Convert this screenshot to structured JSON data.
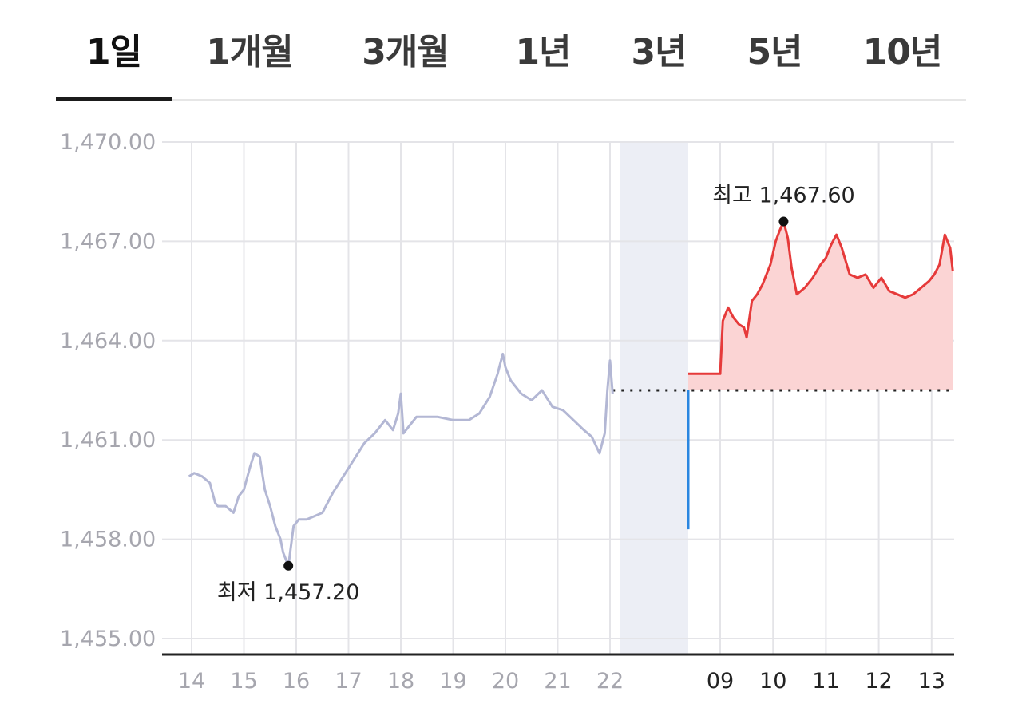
{
  "tabs": [
    {
      "label": "1일",
      "active": true
    },
    {
      "label": "1개월",
      "active": false
    },
    {
      "label": "3개월",
      "active": false
    },
    {
      "label": "1년",
      "active": false
    },
    {
      "label": "3년",
      "active": false
    },
    {
      "label": "5년",
      "active": false
    },
    {
      "label": "10년",
      "active": false
    }
  ],
  "colors": {
    "history_line": "#b3b7d4",
    "today_line": "#e63a3a",
    "today_fill": "#fbd4d4",
    "gap_line": "#2a86e0",
    "gap_band": "#eceef5",
    "grid": "#e4e4e8",
    "axis": "#222222",
    "tick_old": "#a6a6ae",
    "tick_today": "#222222",
    "marker": "#111111"
  },
  "chart_data": {
    "type": "line",
    "title": "",
    "xlabel": "",
    "ylabel": "",
    "ylim": [
      1455.0,
      1470.0
    ],
    "y_ticks": [
      "1,455.00",
      "1,458.00",
      "1,461.00",
      "1,464.00",
      "1,467.00",
      "1,470.00"
    ],
    "grid": true,
    "x_tick_labels_history": [
      "14",
      "15",
      "16",
      "17",
      "18",
      "19",
      "20",
      "21",
      "22"
    ],
    "x_tick_labels_today": [
      "09",
      "10",
      "11",
      "12",
      "13"
    ],
    "reference_price": 1462.5,
    "gap": {
      "from": 1458.3,
      "to": 1462.5
    },
    "annotations": [
      {
        "label": "최저 1,457.20",
        "value": 1457.2,
        "x": 15.85
      },
      {
        "label": "최고 1,467.60",
        "value": 1467.6,
        "x": 10.2
      }
    ],
    "series": [
      {
        "segment": "history",
        "x": [
          13.95,
          14.05,
          14.2,
          14.35,
          14.45,
          14.5,
          14.65,
          14.8,
          14.9,
          15.0,
          15.05,
          15.12,
          15.2,
          15.3,
          15.4,
          15.5,
          15.6,
          15.7,
          15.75,
          15.85,
          15.95,
          16.05,
          16.2,
          16.35,
          16.5,
          16.7,
          16.9,
          17.1,
          17.3,
          17.5,
          17.7,
          17.85,
          17.95,
          18.0,
          18.05,
          18.15,
          18.3,
          18.5,
          18.7,
          19.0,
          19.3,
          19.5,
          19.7,
          19.85,
          19.95,
          20.0,
          20.1,
          20.3,
          20.5,
          20.7,
          20.9,
          21.1,
          21.3,
          21.5,
          21.65,
          21.8,
          21.9,
          21.95,
          22.0,
          22.05
        ],
        "y": [
          1459.9,
          1460.0,
          1459.9,
          1459.7,
          1459.1,
          1459.0,
          1459.0,
          1458.8,
          1459.3,
          1459.5,
          1459.8,
          1460.2,
          1460.6,
          1460.5,
          1459.5,
          1459.0,
          1458.4,
          1458.0,
          1457.6,
          1457.2,
          1458.4,
          1458.6,
          1458.6,
          1458.7,
          1458.8,
          1459.4,
          1459.9,
          1460.4,
          1460.9,
          1461.2,
          1461.6,
          1461.3,
          1461.8,
          1462.4,
          1461.2,
          1461.4,
          1461.7,
          1461.7,
          1461.7,
          1461.6,
          1461.6,
          1461.8,
          1462.3,
          1463.0,
          1463.6,
          1463.2,
          1462.8,
          1462.4,
          1462.2,
          1462.5,
          1462.0,
          1461.9,
          1461.6,
          1461.3,
          1461.1,
          1460.6,
          1461.2,
          1462.5,
          1463.4,
          1462.4
        ]
      },
      {
        "segment": "today",
        "x": [
          8.95,
          9.0,
          9.05,
          9.15,
          9.25,
          9.35,
          9.45,
          9.5,
          9.6,
          9.7,
          9.8,
          9.95,
          10.05,
          10.12,
          10.2,
          10.28,
          10.35,
          10.45,
          10.6,
          10.75,
          10.9,
          11.0,
          11.1,
          11.2,
          11.3,
          11.45,
          11.6,
          11.75,
          11.9,
          12.05,
          12.2,
          12.35,
          12.5,
          12.65,
          12.8,
          12.95,
          13.05,
          13.15,
          13.25,
          13.35,
          13.4
        ],
        "y": [
          1463.0,
          1463.0,
          1464.6,
          1465.0,
          1464.7,
          1464.5,
          1464.4,
          1464.1,
          1465.2,
          1465.4,
          1465.7,
          1466.3,
          1467.0,
          1467.3,
          1467.6,
          1467.1,
          1466.2,
          1465.4,
          1465.6,
          1465.9,
          1466.3,
          1466.5,
          1466.9,
          1467.2,
          1466.8,
          1466.0,
          1465.9,
          1466.0,
          1465.6,
          1465.9,
          1465.5,
          1465.4,
          1465.3,
          1465.4,
          1465.6,
          1465.8,
          1466.0,
          1466.3,
          1467.2,
          1466.8,
          1466.1
        ]
      }
    ]
  }
}
